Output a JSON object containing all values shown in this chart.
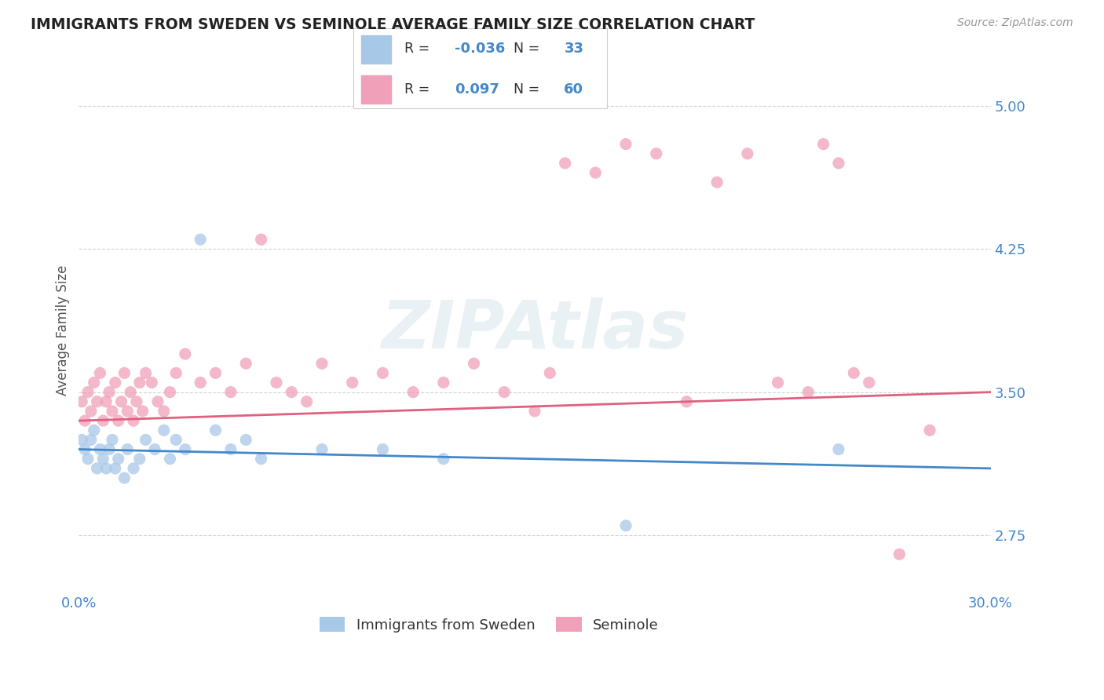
{
  "title": "IMMIGRANTS FROM SWEDEN VS SEMINOLE AVERAGE FAMILY SIZE CORRELATION CHART",
  "source": "Source: ZipAtlas.com",
  "ylabel": "Average Family Size",
  "xlim": [
    0.0,
    0.3
  ],
  "ylim": [
    2.45,
    5.2
  ],
  "yticks": [
    2.75,
    3.5,
    4.25,
    5.0
  ],
  "xticks": [
    0.0,
    0.05,
    0.1,
    0.15,
    0.2,
    0.25,
    0.3
  ],
  "xticklabels": [
    "0.0%",
    "",
    "",
    "",
    "",
    "",
    "30.0%"
  ],
  "background_color": "#ffffff",
  "grid_color": "#c8c8c8",
  "watermark_text": "ZIPAtlas",
  "series": [
    {
      "name": "Immigrants from Sweden",
      "color": "#a8c8e8",
      "line_color": "#4488cc",
      "R": -0.036,
      "N": 33,
      "x": [
        0.001,
        0.002,
        0.003,
        0.004,
        0.005,
        0.006,
        0.007,
        0.008,
        0.009,
        0.01,
        0.011,
        0.012,
        0.013,
        0.015,
        0.016,
        0.018,
        0.02,
        0.022,
        0.025,
        0.028,
        0.03,
        0.032,
        0.035,
        0.04,
        0.045,
        0.05,
        0.055,
        0.06,
        0.08,
        0.1,
        0.12,
        0.18,
        0.25
      ],
      "y": [
        3.25,
        3.2,
        3.15,
        3.25,
        3.3,
        3.1,
        3.2,
        3.15,
        3.1,
        3.2,
        3.25,
        3.1,
        3.15,
        3.05,
        3.2,
        3.1,
        3.15,
        3.25,
        3.2,
        3.3,
        3.15,
        3.25,
        3.2,
        4.3,
        3.3,
        3.2,
        3.25,
        3.15,
        3.2,
        3.2,
        3.15,
        2.8,
        3.2
      ]
    },
    {
      "name": "Seminole",
      "color": "#f0a0b8",
      "line_color": "#e06080",
      "R": 0.097,
      "N": 60,
      "x": [
        0.001,
        0.002,
        0.003,
        0.004,
        0.005,
        0.006,
        0.007,
        0.008,
        0.009,
        0.01,
        0.011,
        0.012,
        0.013,
        0.014,
        0.015,
        0.016,
        0.017,
        0.018,
        0.019,
        0.02,
        0.021,
        0.022,
        0.024,
        0.026,
        0.028,
        0.03,
        0.032,
        0.035,
        0.04,
        0.045,
        0.05,
        0.055,
        0.06,
        0.065,
        0.07,
        0.075,
        0.08,
        0.09,
        0.1,
        0.11,
        0.12,
        0.13,
        0.14,
        0.15,
        0.155,
        0.16,
        0.17,
        0.18,
        0.19,
        0.2,
        0.21,
        0.22,
        0.23,
        0.24,
        0.245,
        0.25,
        0.255,
        0.26,
        0.27,
        0.28
      ],
      "y": [
        3.45,
        3.35,
        3.5,
        3.4,
        3.55,
        3.45,
        3.6,
        3.35,
        3.45,
        3.5,
        3.4,
        3.55,
        3.35,
        3.45,
        3.6,
        3.4,
        3.5,
        3.35,
        3.45,
        3.55,
        3.4,
        3.6,
        3.55,
        3.45,
        3.4,
        3.5,
        3.6,
        3.7,
        3.55,
        3.6,
        3.5,
        3.65,
        4.3,
        3.55,
        3.5,
        3.45,
        3.65,
        3.55,
        3.6,
        3.5,
        3.55,
        3.65,
        3.5,
        3.4,
        3.6,
        4.7,
        4.65,
        4.8,
        4.75,
        3.45,
        4.6,
        4.75,
        3.55,
        3.5,
        4.8,
        4.7,
        3.6,
        3.55,
        2.65,
        3.3
      ]
    }
  ],
  "legend_R_color": "#4488cc",
  "legend_N_color": "#4488cc",
  "title_color": "#222222",
  "axis_label_color": "#555555",
  "tick_color": "#4488cc"
}
